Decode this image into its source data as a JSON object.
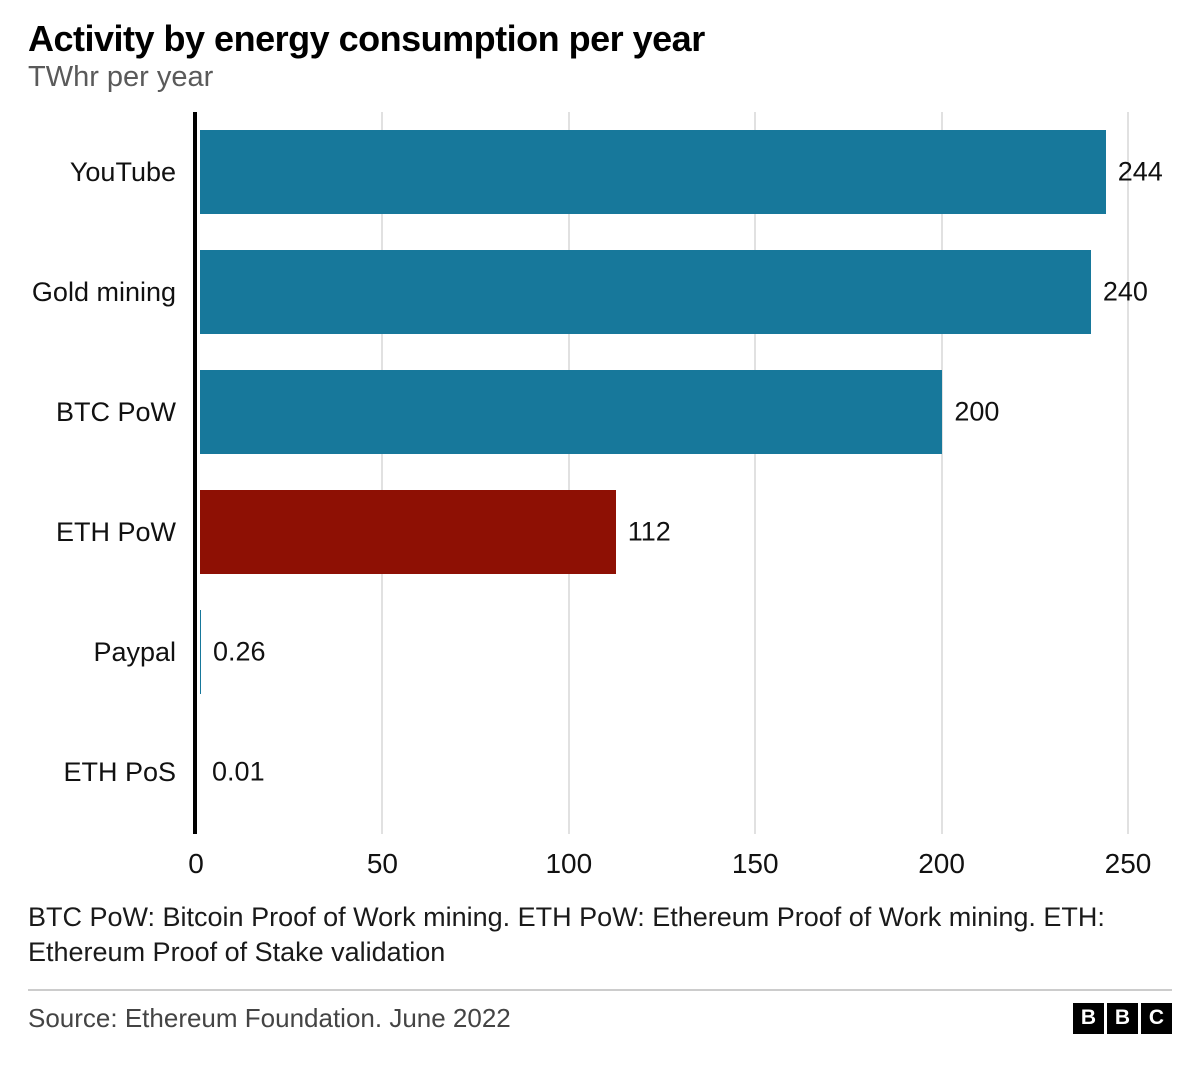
{
  "header": {
    "title": "Activity by energy consumption per year",
    "subtitle": "TWhr per year"
  },
  "chart_data": {
    "type": "bar",
    "orientation": "horizontal",
    "title": "Activity by energy consumption per year",
    "subtitle": "TWhr per year",
    "ylabel": "",
    "xlabel": "TWhr per year",
    "categories": [
      "YouTube",
      "Gold mining",
      "BTC PoW",
      "ETH PoW",
      "Paypal",
      "ETH PoS"
    ],
    "values": [
      244,
      240,
      200,
      112,
      0.26,
      0.01
    ],
    "value_labels": [
      "244",
      "240",
      "200",
      "112",
      "0.26",
      "0.01"
    ],
    "bar_colors": [
      "#17789b",
      "#17789b",
      "#17789b",
      "#8e1004",
      "#17789b",
      "#17789b"
    ],
    "xlim": [
      0,
      250
    ],
    "x_ticks": [
      0,
      50,
      100,
      150,
      200,
      250
    ],
    "x_tick_labels": [
      "0",
      "50",
      "100",
      "150",
      "200",
      "250"
    ],
    "grid": true,
    "legend": "none"
  },
  "footer": {
    "footnote": "BTC PoW: Bitcoin Proof of Work mining. ETH PoW: Ethereum Proof of Work mining. ETH: Ethereum Proof of Stake validation",
    "source": "Source: Ethereum Foundation. June 2022",
    "logo_letters": [
      "B",
      "B",
      "C"
    ]
  },
  "colors": {
    "bar_teal": "#17789b",
    "bar_red": "#8e1004",
    "gridline": "#e1e1e1",
    "axis": "#000000",
    "divider": "#cccccc"
  }
}
